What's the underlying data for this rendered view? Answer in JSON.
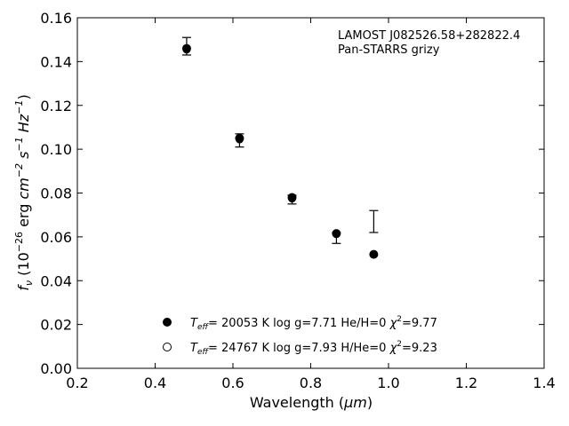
{
  "chart_data": {
    "type": "scatter",
    "xlabel": "Wavelength (",
    "xlabel_unit": "μm",
    "xlabel_close": ")",
    "ylabel_parts": {
      "f": "f",
      "nu": "ν",
      "open": "(10",
      "exp26": "−26",
      "erg": " erg ",
      "cm": "cm",
      "cm_exp": "−2",
      "s": "s",
      "s_exp": "−1",
      "hz": "Hz",
      "hz_exp": "−1",
      "close": ")"
    },
    "xlim": [
      0.2,
      1.4
    ],
    "ylim": [
      0.0,
      0.16
    ],
    "xticks": [
      "0.2",
      "0.4",
      "0.6",
      "0.8",
      "1.0",
      "1.2",
      "1.4"
    ],
    "yticks": [
      "0.00",
      "0.02",
      "0.04",
      "0.06",
      "0.08",
      "0.10",
      "0.12",
      "0.14",
      "0.16"
    ],
    "annotations": [
      "LAMOST J082526.58+282822.4",
      "Pan-STARRS grizy"
    ],
    "observed": [
      {
        "x": 0.481,
        "y": 0.147,
        "yerr_low": 0.143,
        "yerr_high": 0.151
      },
      {
        "x": 0.617,
        "y": 0.1045,
        "yerr_low": 0.101,
        "yerr_high": 0.107
      },
      {
        "x": 0.752,
        "y": 0.077,
        "yerr_low": 0.075,
        "yerr_high": 0.079
      },
      {
        "x": 0.866,
        "y": 0.0595,
        "yerr_low": 0.057,
        "yerr_high": 0.062
      },
      {
        "x": 0.962,
        "y": 0.067,
        "yerr_low": 0.062,
        "yerr_high": 0.072
      }
    ],
    "series": [
      {
        "marker": "filled",
        "label_T": "T",
        "label_eff": "eff",
        "label_rest": "= 20053 K  log g=7.71  He/H=0  ",
        "label_chi": "χ",
        "label_chi_exp": "2",
        "label_chi_val": "=9.77",
        "x": [
          0.481,
          0.617,
          0.752,
          0.866,
          0.962
        ],
        "y": [
          0.146,
          0.105,
          0.078,
          0.0615,
          0.052
        ]
      },
      {
        "marker": "open",
        "label_T": "T",
        "label_eff": "eff",
        "label_rest": "= 24767 K  log g=7.93  H/He=0  ",
        "label_chi": "χ",
        "label_chi_exp": "2",
        "label_chi_val": "=9.23",
        "x": [
          0.481,
          0.617,
          0.752,
          0.866,
          0.962
        ],
        "y": [
          0.1455,
          0.1045,
          0.0775,
          0.0615,
          0.052
        ]
      }
    ],
    "grid": false,
    "legend": "lower-center"
  }
}
